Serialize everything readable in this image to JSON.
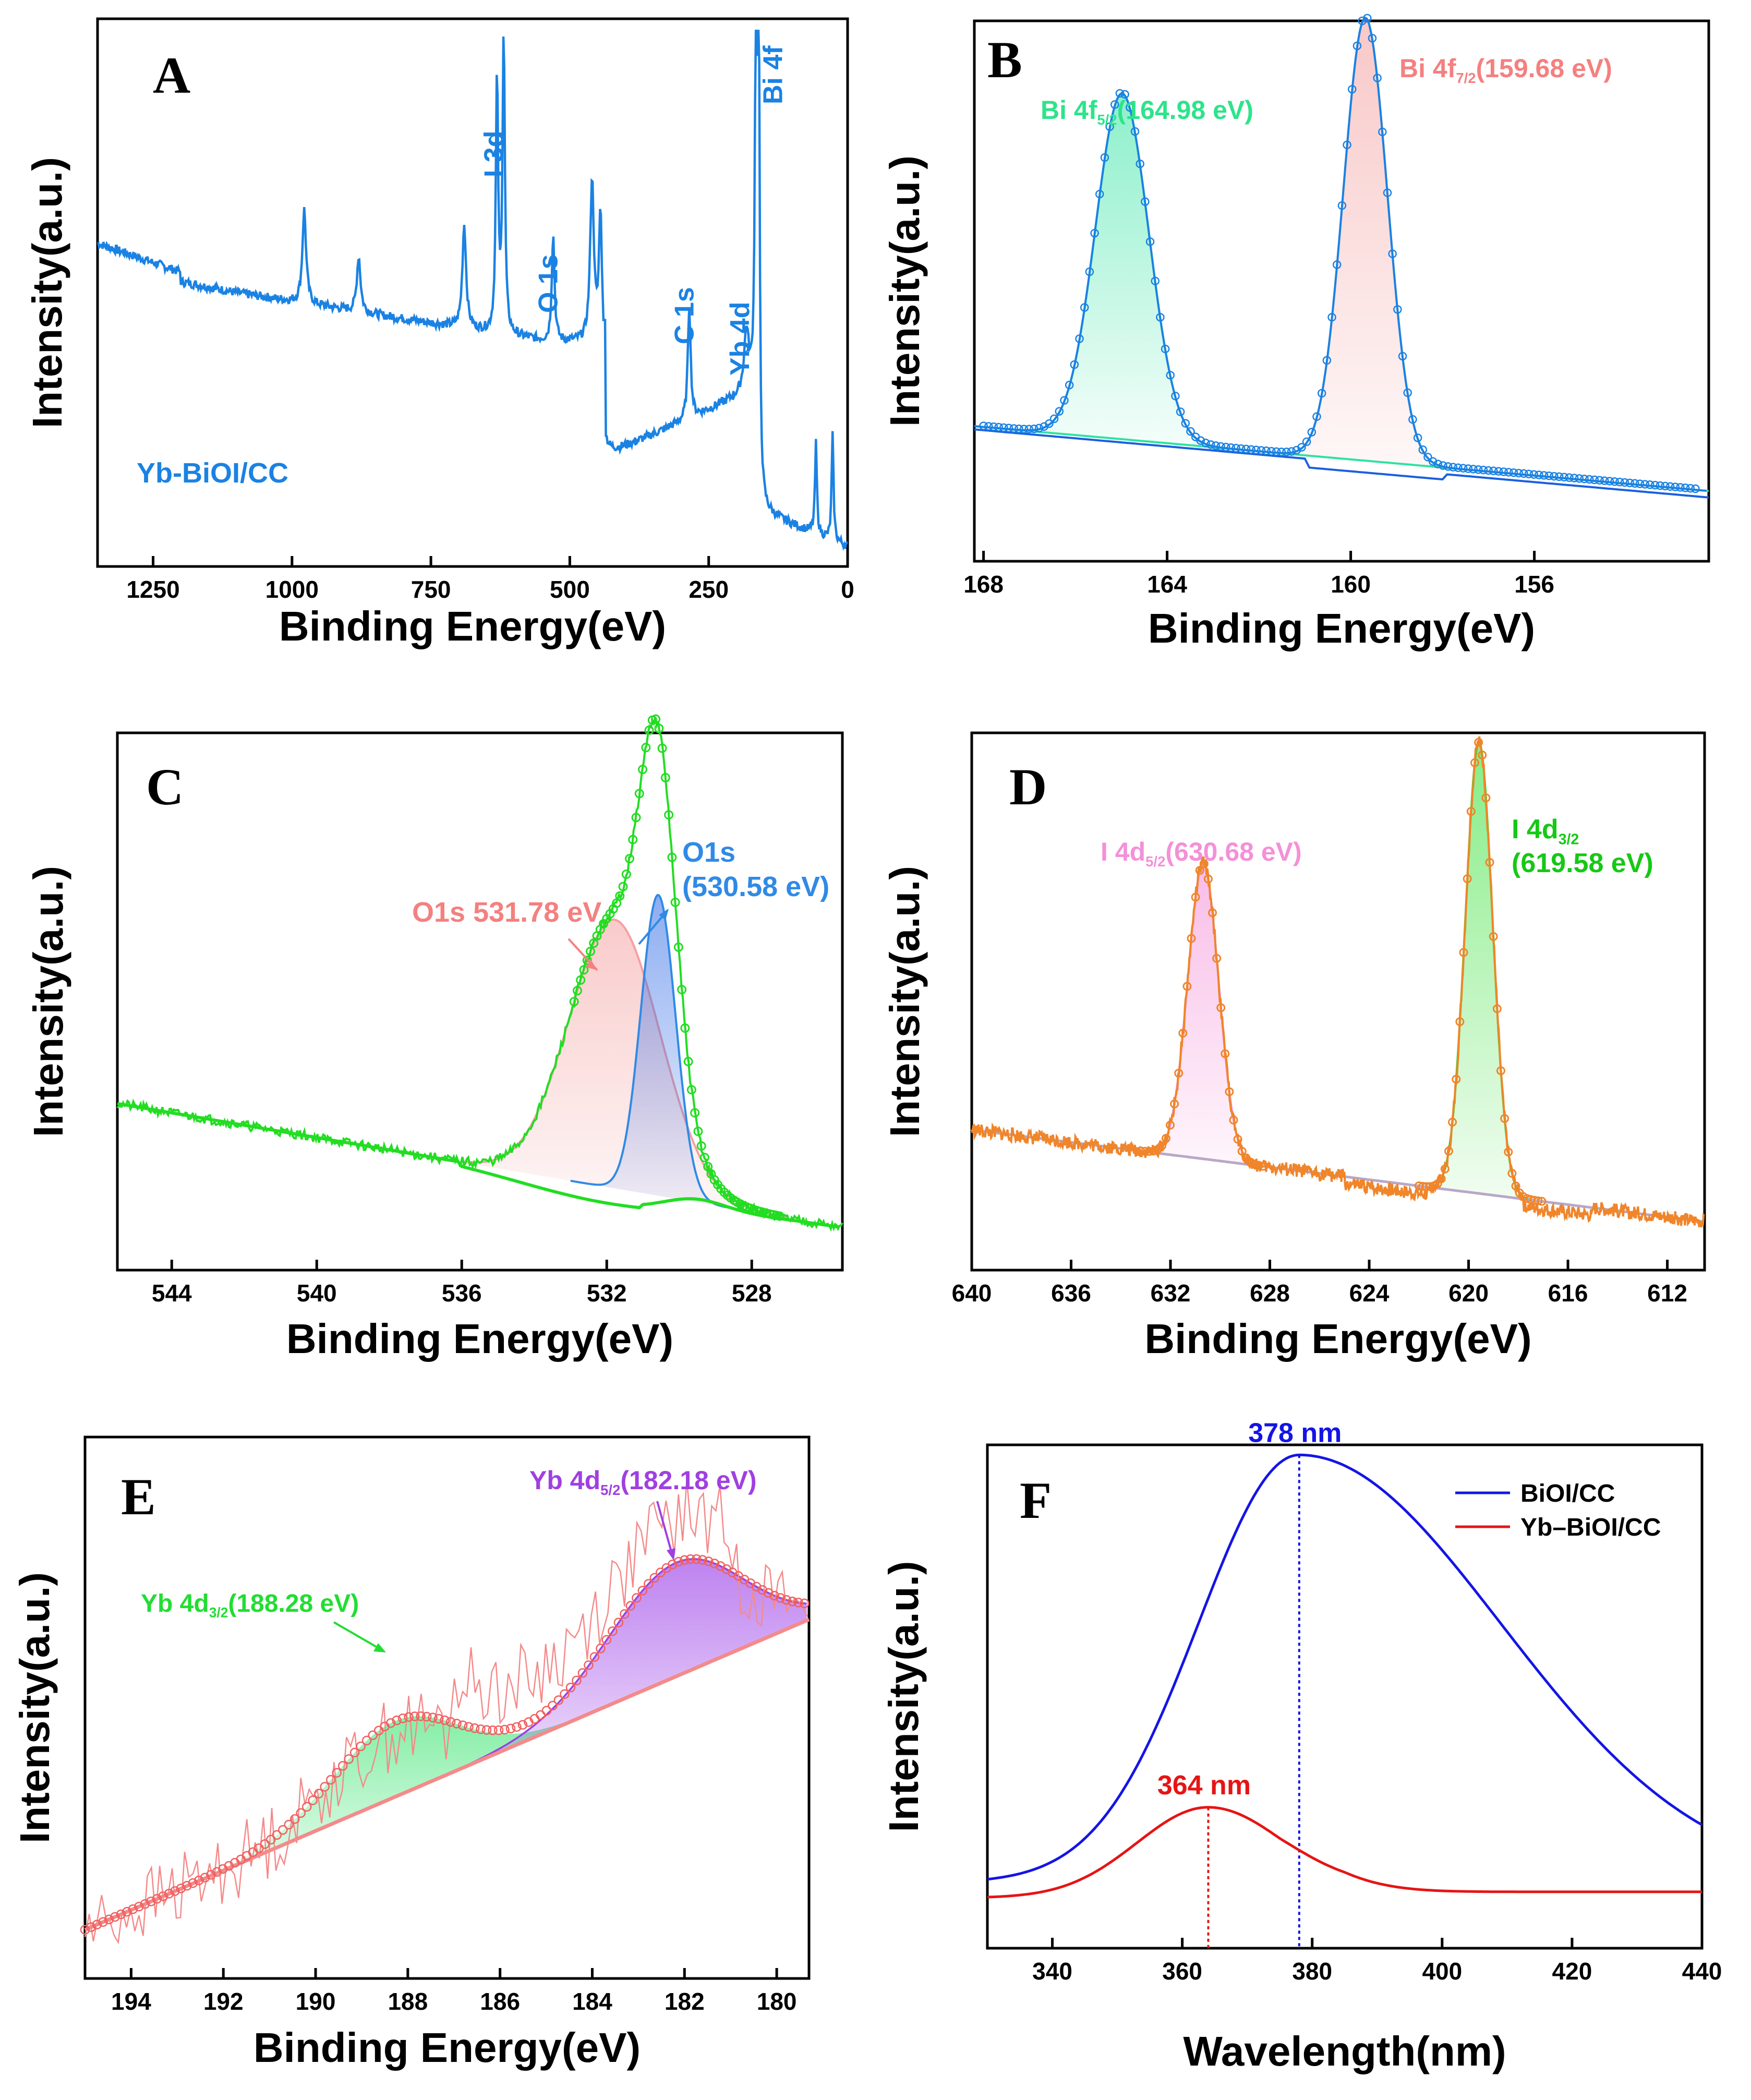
{
  "chart_data": [
    {
      "panel": "A",
      "type": "line",
      "xlabel": "Binding Energy(eV)",
      "ylabel": "Intensity(a.u.)",
      "xlim": [
        1350,
        0
      ],
      "ylim": [
        0,
        100
      ],
      "x_ticks": [
        1250,
        1000,
        750,
        500,
        250,
        0
      ],
      "tick_labels": [
        "1250",
        "1000",
        "750",
        "500",
        "250",
        "0"
      ],
      "sample_label": "Yb-BiOI/CC",
      "color": "#1a82e3",
      "peaks": [
        {
          "x": 1250,
          "y": 60,
          "w": 0
        },
        {
          "x": 978,
          "y": 46,
          "w": 4
        },
        {
          "x": 880,
          "y": 38,
          "w": 4
        },
        {
          "x": 690,
          "y": 45,
          "w": 4
        },
        {
          "x": 631,
          "y": 72,
          "w": 2.5
        },
        {
          "x": 619,
          "y": 80,
          "w": 2.5
        },
        {
          "x": 530,
          "y": 44,
          "w": 3
        },
        {
          "x": 460,
          "y": 54,
          "w": 4
        },
        {
          "x": 445,
          "y": 48,
          "w": 3
        },
        {
          "x": 285,
          "y": 37,
          "w": 3
        },
        {
          "x": 182,
          "y": 30,
          "w": 5
        },
        {
          "x": 165,
          "y": 90,
          "w": 2
        },
        {
          "x": 160,
          "y": 96,
          "w": 2
        },
        {
          "x": 57,
          "y": 20,
          "w": 2
        },
        {
          "x": 27,
          "y": 22,
          "w": 2
        }
      ],
      "annotations": [
        {
          "text": "I 3d",
          "x": 620
        },
        {
          "text": "O 1s",
          "x": 530
        },
        {
          "text": "C 1s",
          "x": 285
        },
        {
          "text": "Yb 4d",
          "x": 182
        },
        {
          "text": "Bi 4f",
          "x": 160
        }
      ]
    },
    {
      "panel": "B",
      "type": "line",
      "xlabel": "Binding Energy(eV)",
      "ylabel": "Intensity(a.u.)",
      "xlim": [
        168.2,
        152.2
      ],
      "ylim": [
        0,
        100
      ],
      "x_ticks": [
        168,
        164,
        160,
        156
      ],
      "tick_labels": [
        "168",
        "164",
        "160",
        "156"
      ],
      "series": [
        {
          "name": "Bi 4f5/2",
          "center": 164.98,
          "amplitude": 64,
          "color": "#2ee3a0"
        },
        {
          "name": "Bi 4f7/2",
          "center": 159.68,
          "amplitude": 82,
          "color": "#f4a3a3"
        }
      ],
      "peak_labels": [
        {
          "main": "Bi 4f",
          "sub": "5/2",
          "tail": "(164.98 eV)",
          "color": "#2ee38a"
        },
        {
          "main": "Bi 4f",
          "sub": "7/2",
          "tail": "(159.68 eV)",
          "color": "#f48080"
        }
      ]
    },
    {
      "panel": "C",
      "type": "line",
      "xlabel": "Binding Energy(eV)",
      "ylabel": "Intensity(a.u.)",
      "xlim": [
        545.5,
        525.5
      ],
      "ylim": [
        0,
        100
      ],
      "x_ticks": [
        544,
        540,
        536,
        532,
        528
      ],
      "tick_labels": [
        "544",
        "540",
        "536",
        "532",
        "528"
      ],
      "series": [
        {
          "name": "O1s 531.78 eV",
          "center": 531.78,
          "amplitude": 50,
          "color": "#f4a0a0"
        },
        {
          "name": "O1s 530.58 eV",
          "center": 530.58,
          "amplitude": 56,
          "color": "#2f8ae6"
        }
      ],
      "peak_labels": [
        {
          "text": "O1s 531.78 eV",
          "color": "#f48080"
        },
        {
          "text": "O1s",
          "color": "#2f8ae6"
        },
        {
          "text": "(530.58 eV)",
          "color": "#2f8ae6"
        }
      ]
    },
    {
      "panel": "D",
      "type": "line",
      "xlabel": "Binding Energy(eV)",
      "ylabel": "Intensity(a.u.)",
      "xlim": [
        640,
        610.5
      ],
      "ylim": [
        0,
        100
      ],
      "x_ticks": [
        640,
        636,
        632,
        628,
        624,
        620,
        616,
        612
      ],
      "tick_labels": [
        "640",
        "636",
        "632",
        "628",
        "624",
        "620",
        "616",
        "612"
      ],
      "series": [
        {
          "name": "I 4d5/2",
          "center": 630.68,
          "amplitude": 55,
          "color": "#f490d8"
        },
        {
          "name": "I 4d3/2",
          "center": 619.58,
          "amplitude": 84,
          "color": "#22dd22"
        }
      ],
      "peak_labels": [
        {
          "main": "I 4d",
          "sub": "5/2",
          "tail": "(630.68 eV)",
          "color": "#f490d8"
        },
        {
          "main": "I 4d",
          "sub": "3/2",
          "tail": "",
          "color": "#16c816"
        },
        {
          "text": "(619.58 eV)",
          "color": "#16c816"
        }
      ]
    },
    {
      "panel": "E",
      "type": "line",
      "xlabel": "Binding Energy(eV)",
      "ylabel": "Intensity(a.u.)",
      "xlim": [
        195,
        179.3
      ],
      "ylim": [
        0,
        100
      ],
      "x_ticks": [
        194,
        192,
        190,
        188,
        186,
        184,
        182,
        180
      ],
      "tick_labels": [
        "194",
        "192",
        "190",
        "188",
        "186",
        "184",
        "182",
        "180"
      ],
      "series": [
        {
          "name": "Yb 4d3/2",
          "center": 188.28,
          "amplitude": 14,
          "color": "#33e36a"
        },
        {
          "name": "Yb 4d5/2",
          "center": 182.18,
          "amplitude": 21,
          "color": "#9b3fe8"
        }
      ],
      "peak_labels": [
        {
          "main": "Yb 4d",
          "sub": "3/2",
          "tail": "(188.28 eV)",
          "color": "#22dd33"
        },
        {
          "main": "Yb 4d",
          "sub": "5/2",
          "tail": "(182.18 eV)",
          "color": "#a040e0"
        }
      ]
    },
    {
      "panel": "F",
      "type": "line",
      "xlabel": "Wavelength(nm)",
      "ylabel": "Intensity(a.u.)",
      "xlim": [
        330,
        440
      ],
      "ylim": [
        0,
        100
      ],
      "x_ticks": [
        340,
        360,
        380,
        400,
        420,
        440
      ],
      "tick_labels": [
        "340",
        "360",
        "380",
        "400",
        "420",
        "440"
      ],
      "series": [
        {
          "name": "BiOI/CC",
          "color": "#1414e6",
          "peak_nm": 378,
          "peak_label": "378 nm"
        },
        {
          "name": "Yb–BiOI/CC",
          "color": "#e61414",
          "peak_nm": 364,
          "peak_label": "364 nm"
        }
      ]
    }
  ]
}
